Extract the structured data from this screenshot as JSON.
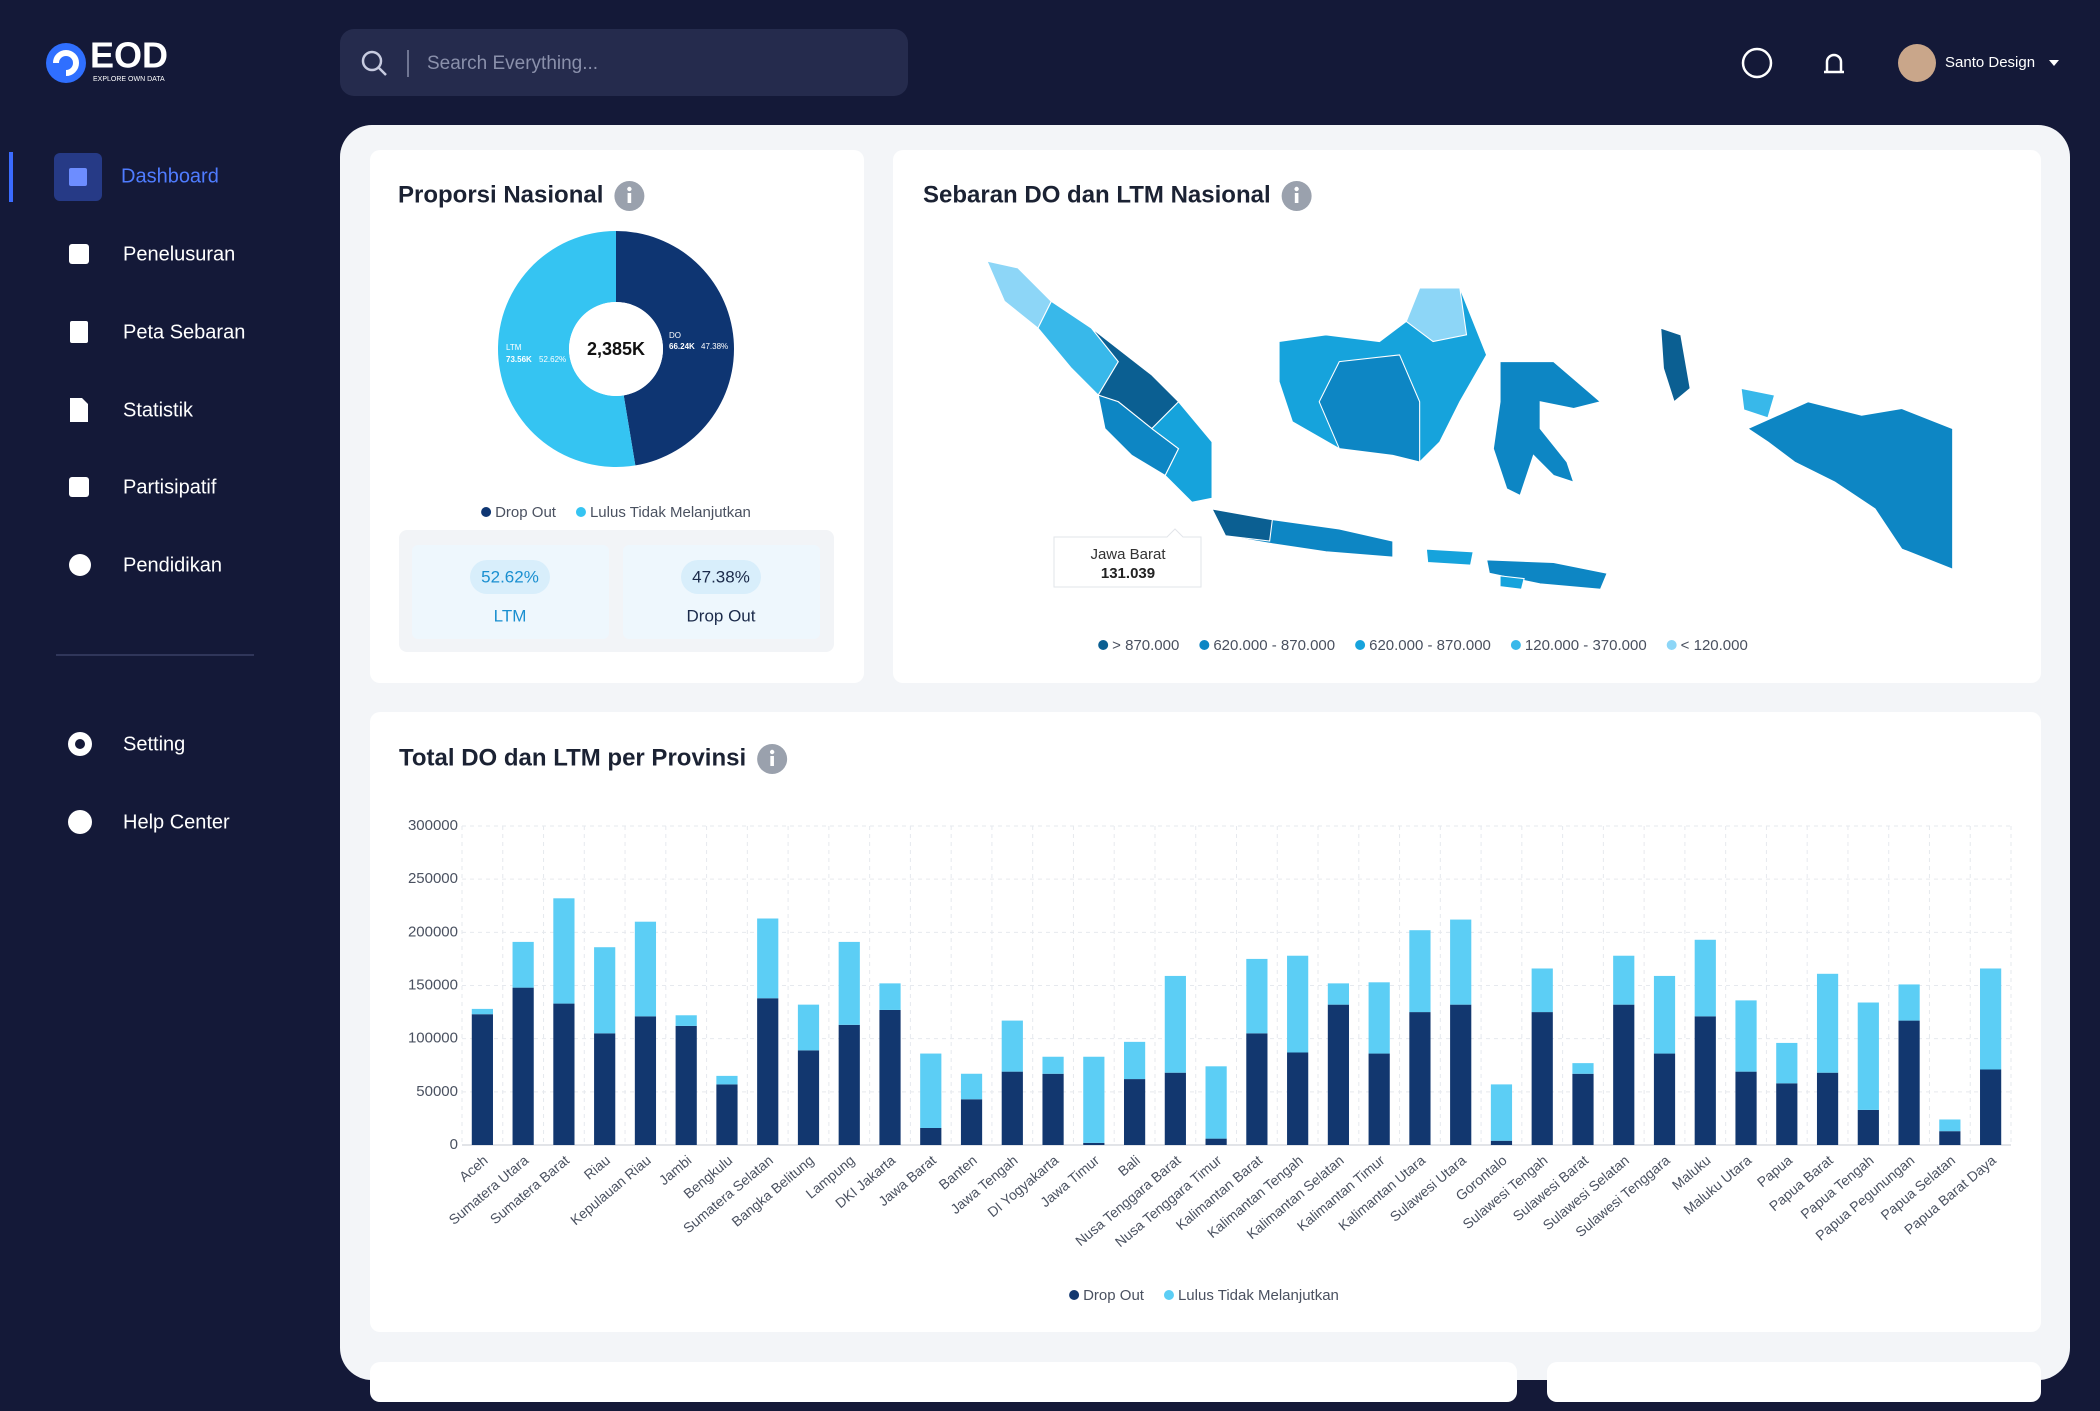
{
  "brand": {
    "name": "EOD",
    "tagline": "EXPLORE OWN DATA"
  },
  "search": {
    "placeholder": "Search Everything..."
  },
  "user": {
    "name": "Santo Design"
  },
  "nav": {
    "main": [
      "Dashboard",
      "Penelusuran",
      "Peta Sebaran",
      "Statistik",
      "Partisipatif",
      "Pendidikan"
    ],
    "support": [
      "Setting",
      "Help Center"
    ]
  },
  "map": {
    "title": "Sebaran DO dan LTM Nasional",
    "tooltip": {
      "label": "Jawa Barat",
      "value": "131.039"
    },
    "legend": [
      {
        "label": "> 870.000",
        "color": "#0b5f92"
      },
      {
        "label": "620.000 - 870.000",
        "color": "#0d86c4"
      },
      {
        "label": "620.000 - 870.000",
        "color": "#16a3dc"
      },
      {
        "label": "120.000 - 370.000",
        "color": "#38b8ea"
      },
      {
        "label": "< 120.000",
        "color": "#8dd6f7"
      }
    ]
  },
  "chart_data": [
    {
      "type": "pie",
      "title": "Proporsi Nasional",
      "center_label": "2,385K",
      "categories": [
        "Drop Out",
        "Lulus Tidak Melanjutkan"
      ],
      "slice_labels": [
        "DO",
        "LTM"
      ],
      "amount_labels": [
        "66.24K",
        "73.56K"
      ],
      "values": [
        47.38,
        52.62
      ],
      "value_labels": [
        "47.38%",
        "52.62%"
      ],
      "colors": [
        "#0e3572",
        "#35c4f2"
      ]
    },
    {
      "type": "bar",
      "stacked": true,
      "title": "Total DO dan LTM per Provinsi",
      "categories": [
        "Aceh",
        "Sumatera Utara",
        "Sumatera Barat",
        "Riau",
        "Kepulauan Riau",
        "Jambi",
        "Bengkulu",
        "Sumatera Selatan",
        "Bangka Belitung",
        "Lampung",
        "DKI Jakarta",
        "Jawa Barat",
        "Banten",
        "Jawa Tengah",
        "DI Yogyakarta",
        "Jawa Timur",
        "Bali",
        "Nusa Tenggara Barat",
        "Nusa Tenggara Timur",
        "Kalimantan Barat",
        "Kalimantan Tengah",
        "Kalimantan Selatan",
        "Kalimantan Timur",
        "Kalimantan Utara",
        "Sulawesi Utara",
        "Gorontalo",
        "Sulawesi Tengah",
        "Sulawesi Barat",
        "Sulawesi Selatan",
        "Sulawesi Tenggara",
        "Maluku",
        "Maluku Utara",
        "Papua",
        "Papua Barat",
        "Papua Tengah",
        "Papua Pegunungan",
        "Papua Selatan",
        "Papua Barat Daya"
      ],
      "series": [
        {
          "name": "Drop Out",
          "color": "#12376f",
          "values": [
            123000,
            148000,
            133000,
            105000,
            121000,
            112000,
            57000,
            138000,
            89000,
            113000,
            127000,
            16000,
            43000,
            69000,
            67000,
            2000,
            62000,
            68000,
            6000,
            105000,
            87000,
            132000,
            86000,
            125000,
            132000,
            4000,
            125000,
            67000,
            132000,
            86000,
            121000,
            69000,
            58000,
            68000,
            33000,
            117000,
            13000,
            71000
          ]
        },
        {
          "name": "Lulus Tidak Melanjutkan",
          "color": "#5ccef5",
          "values": [
            5000,
            43000,
            99000,
            81000,
            89000,
            10000,
            8000,
            75000,
            43000,
            78000,
            25000,
            70000,
            24000,
            48000,
            16000,
            81000,
            35000,
            91000,
            68000,
            70000,
            91000,
            20000,
            67000,
            77000,
            80000,
            53000,
            41000,
            10000,
            46000,
            73000,
            72000,
            67000,
            38000,
            93000,
            101000,
            34000,
            11000,
            95000
          ]
        }
      ],
      "ylim": [
        0,
        300000
      ],
      "yticks": [
        0,
        50000,
        100000,
        150000,
        200000,
        250000,
        300000
      ],
      "grid": true
    }
  ]
}
